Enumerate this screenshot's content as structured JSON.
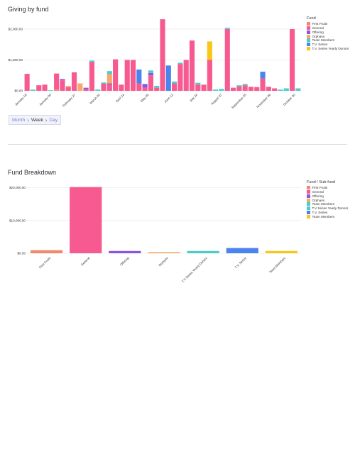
{
  "chart_data": [
    {
      "type": "bar",
      "stacked": true,
      "title": "Giving by fund",
      "legend_title": "Fund",
      "legend_position": "right",
      "yticks": [
        "$0.00",
        "$1,000.00",
        "$2,000.00"
      ],
      "ylim": [
        0,
        2300
      ],
      "xtick_labels": [
        "January 16",
        "January 09",
        "February 27",
        "March 20",
        "April 24",
        "May 29",
        "June 12",
        "July 24",
        "August 07",
        "September 25",
        "November 06",
        "October 30"
      ],
      "series_names": [
        "First Fruits",
        "General",
        "Offering",
        "Orphans",
        "Team Members",
        "T.V. Series",
        "T.V. Series Yearly Donors"
      ],
      "colors": {
        "First Fruits": "#F08A6E",
        "General": "#F75A90",
        "Offering": "#8A55E0",
        "Orphans": "#F6A96B",
        "Team Members": "#4CCDCB",
        "T.V. Series": "#4B84EE",
        "T.V. Series Yearly Donors": "#F7C719"
      },
      "bars": [
        {
          "General": 550
        },
        {
          "Team Members": 40
        },
        {
          "General": 180
        },
        {
          "General": 200
        },
        {
          "Team Members": 20
        },
        {
          "General": 520,
          "First Fruits": 40
        },
        {
          "General": 340,
          "Offering": 40
        },
        {
          "General": 120,
          "Orphans": 40
        },
        {
          "General": 600
        },
        {
          "Orphans": 240
        },
        {
          "General": 50,
          "Offering": 50
        },
        {
          "General": 940,
          "Team Members": 40
        },
        {
          "Team Members": 40
        },
        {
          "General": 230,
          "Team Members": 40
        },
        {
          "General": 200,
          "Orphans": 300,
          "Offering": 40,
          "Team Members": 100
        },
        {
          "General": 1020
        },
        {
          "General": 200
        },
        {
          "General": 1000
        },
        {
          "General": 1000
        },
        {
          "General": 240,
          "T.V. Series": 450
        },
        {
          "General": 100,
          "Offering": 120
        },
        {
          "General": 500,
          "Team Members": 80,
          "Offering": 80
        },
        {
          "General": 100,
          "Team Members": 60
        },
        {
          "General": 2320
        },
        {
          "T.V. Series": 820
        },
        {
          "General": 240,
          "Team Members": 60
        },
        {
          "General": 870,
          "Team Members": 40
        },
        {
          "General": 1000
        },
        {
          "General": 1630
        },
        {
          "Team Members": 60,
          "General": 200
        },
        {
          "General": 200
        },
        {
          "General": 1000,
          "T.V. Series Yearly Donors": 600
        },
        {
          "Team Members": 40
        },
        {
          "Team Members": 60
        },
        {
          "General": 2000,
          "Team Members": 40
        },
        {
          "General": 100
        },
        {
          "General": 140,
          "Team Members": 40
        },
        {
          "General": 180,
          "Team Members": 40
        },
        {
          "General": 130
        },
        {
          "General": 120
        },
        {
          "General": 400,
          "T.V. Series": 220
        },
        {
          "General": 130
        },
        {
          "General": 80
        },
        {
          "Team Members": 40
        },
        {
          "Team Members": 80
        },
        {
          "General": 2000
        },
        {
          "Team Members": 80
        }
      ]
    },
    {
      "type": "bar",
      "title": "Fund Breakdown",
      "legend_title": "Fund / Sub-fund",
      "legend_position": "right",
      "yticks": [
        "$0.00",
        "$10,000.00",
        "$20,000.00"
      ],
      "ylim": [
        0,
        21000
      ],
      "categories": [
        "First Fruits",
        "General",
        "Offering",
        "Orphans",
        "T.V Series Yearly Donors",
        "T.V. Series",
        "Team Members"
      ],
      "values": [
        950,
        20200,
        700,
        350,
        700,
        1600,
        700
      ],
      "bar_colors": [
        "#F08A6E",
        "#F75A90",
        "#8A55E0",
        "#F6A96B",
        "#4CCDCB",
        "#4B84EE",
        "#F7C719"
      ],
      "legend": [
        {
          "name": "First Fruits",
          "color": "#F08A6E"
        },
        {
          "name": "General",
          "color": "#F75A90"
        },
        {
          "name": "Offering",
          "color": "#8A55E0"
        },
        {
          "name": "Orphans",
          "color": "#F6A96B"
        },
        {
          "name": "Team Members",
          "color": "#4CCDCB"
        },
        {
          "name": "T.V Series Yearly Donors",
          "color": "#4CCDCB"
        },
        {
          "name": "T.V. Series",
          "color": "#4B84EE"
        },
        {
          "name": "Team Members",
          "color": "#F7C719"
        }
      ]
    }
  ],
  "breadcrumb": {
    "month": "Month",
    "week": "Week",
    "day": "Day",
    "separator": "›"
  }
}
